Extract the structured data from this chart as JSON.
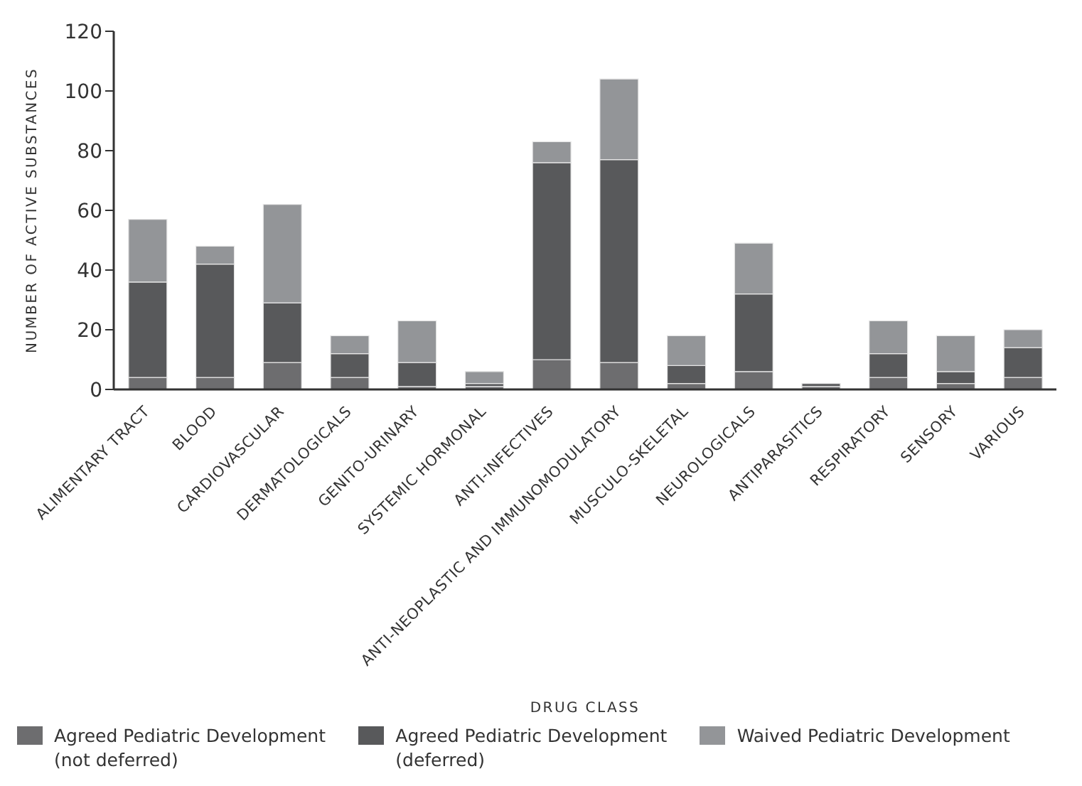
{
  "chart_data": {
    "type": "bar",
    "stacked": true,
    "xlabel": "DRUG CLASS",
    "ylabel": "NUMBER OF ACTIVE SUBSTANCES",
    "categories": [
      "ALIMENTARY TRACT",
      "BLOOD",
      "CARDIOVASCULAR",
      "DERMATOLOGICALS",
      "GENITO-URINARY",
      "SYSTEMIC HORMONAL",
      "ANTI-INFECTIVES",
      "ANTI-NEOPLASTIC AND IMMUNOMODULATORY",
      "MUSCULO-SKELETAL",
      "NEUROLOGICALS",
      "ANTIPARASITICS",
      "RESPIRATORY",
      "SENSORY",
      "VARIOUS"
    ],
    "series": [
      {
        "name": "Agreed Pediatric Development (not deferred)",
        "color": "#6d6d6f",
        "values": [
          4,
          4,
          9,
          4,
          1,
          1,
          10,
          9,
          2,
          6,
          1,
          4,
          2,
          4
        ]
      },
      {
        "name": "Agreed Pediatric Development (deferred)",
        "color": "#58595b",
        "values": [
          32,
          38,
          20,
          8,
          8,
          1,
          66,
          68,
          6,
          26,
          1,
          8,
          4,
          10
        ]
      },
      {
        "name": "Waived Pediatric Development",
        "color": "#939598",
        "values": [
          21,
          6,
          33,
          6,
          14,
          4,
          7,
          27,
          10,
          17,
          0,
          11,
          12,
          6
        ]
      }
    ],
    "ylim": [
      0,
      120
    ],
    "yticks": [
      0,
      20,
      40,
      60,
      80,
      100,
      120
    ],
    "grid": false,
    "legend": "bottom"
  }
}
